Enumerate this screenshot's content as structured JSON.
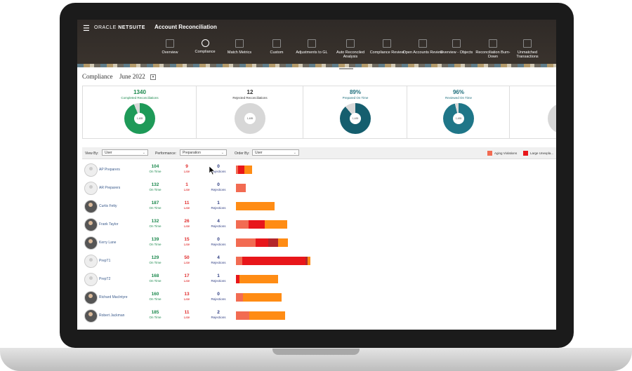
{
  "brand": {
    "name_regular": "ORACLE",
    "name_bold": "NETSUITE"
  },
  "app_title": "Account Reconciliation",
  "nav": [
    {
      "label": "Overview",
      "icon": "dashboard-icon"
    },
    {
      "label": "Compliance",
      "icon": "people-icon"
    },
    {
      "label": "Match Metrics",
      "icon": "chart-icon"
    },
    {
      "label": "Custom",
      "icon": "report-icon"
    },
    {
      "label": "Adjustments to GL",
      "icon": "report-icon"
    },
    {
      "label": "Auto Reconciled Analysis",
      "icon": "report-icon"
    },
    {
      "label": "Compliance Review",
      "icon": "report-icon"
    },
    {
      "label": "Open Accounts Review",
      "icon": "report-icon"
    },
    {
      "label": "Overview - Objects",
      "icon": "report-icon"
    },
    {
      "label": "Reconciliation Burn-Down",
      "icon": "report-icon"
    },
    {
      "label": "Unmatched Transactions",
      "icon": "report-icon"
    }
  ],
  "page": {
    "title": "Compliance",
    "period": "June 2022"
  },
  "cards": [
    {
      "value": "1340",
      "label": "Completed Reconciliations",
      "color": "#1e8a4f",
      "donut_color": "#1e9a58",
      "fraction": 0.94
    },
    {
      "value": "12",
      "label": "Rejected Reconciliations",
      "color": "#333333",
      "donut_color": "#d7d7d7",
      "fraction": 1.0
    },
    {
      "value": "89%",
      "label": "Prepared On Time",
      "color": "#1f6f7d",
      "donut_color": "#155e6e",
      "fraction": 0.89
    },
    {
      "value": "96%",
      "label": "Reviewed On Time",
      "color": "#1f6f7d",
      "donut_color": "#1f7688",
      "fraction": 0.96
    }
  ],
  "donut_center": "1,485",
  "filters": {
    "view_by_label": "View By:",
    "view_by_value": "User",
    "performance_label": "Performance:",
    "performance_value": "Preparation",
    "order_by_label": "Order By:",
    "order_by_value": "User"
  },
  "legend": [
    {
      "label": "Aging Violations",
      "color": "#f26b52"
    },
    {
      "label": "Large Unexpla...",
      "color": "#e8161a"
    }
  ],
  "colors": {
    "ontime": "#1e8a4f",
    "late": "#e02b2b",
    "rejections": "#2b3a80",
    "orange": "#ff8c14"
  },
  "metric_labels": {
    "ontime": "On Time",
    "late": "Late",
    "rejections": "Rejections"
  },
  "rows": [
    {
      "name": "AP Preparers",
      "avatar": "generic",
      "ontime": "104",
      "late": "9",
      "rejections": "0",
      "segments": [
        {
          "w": 3,
          "c": "#f26b52"
        },
        {
          "w": 9,
          "c": "#e8161a"
        },
        {
          "w": 11,
          "c": "#ff8c14"
        }
      ]
    },
    {
      "name": "AR Preparers",
      "avatar": "generic",
      "ontime": "132",
      "late": "1",
      "rejections": "0",
      "segments": [
        {
          "w": 14,
          "c": "#f26b52"
        }
      ]
    },
    {
      "name": "Curtis Fetty",
      "avatar": "photo",
      "ontime": "187",
      "late": "11",
      "rejections": "1",
      "segments": [
        {
          "w": 55,
          "c": "#ff8c14"
        }
      ]
    },
    {
      "name": "Frank Taylor",
      "avatar": "photo",
      "ontime": "132",
      "late": "26",
      "rejections": "4",
      "segments": [
        {
          "w": 18,
          "c": "#f26b52"
        },
        {
          "w": 23,
          "c": "#e8161a"
        },
        {
          "w": 32,
          "c": "#ff8c14"
        }
      ]
    },
    {
      "name": "Kerry Lane",
      "avatar": "photo",
      "ontime": "139",
      "late": "15",
      "rejections": "0",
      "segments": [
        {
          "w": 28,
          "c": "#f26b52"
        },
        {
          "w": 18,
          "c": "#e8161a"
        },
        {
          "w": 14,
          "c": "#b3262a"
        },
        {
          "w": 14,
          "c": "#ff8c14"
        }
      ]
    },
    {
      "name": "PrepT1",
      "avatar": "generic",
      "ontime": "129",
      "late": "50",
      "rejections": "4",
      "segments": [
        {
          "w": 9,
          "c": "#f26b52"
        },
        {
          "w": 90,
          "c": "#e8161a"
        },
        {
          "w": 3,
          "c": "#b3262a"
        },
        {
          "w": 4,
          "c": "#ff8c14"
        }
      ]
    },
    {
      "name": "PrepT2",
      "avatar": "generic",
      "ontime": "168",
      "late": "17",
      "rejections": "1",
      "segments": [
        {
          "w": 5,
          "c": "#e8161a"
        },
        {
          "w": 55,
          "c": "#ff8c14"
        }
      ]
    },
    {
      "name": "Richard MacIntyre",
      "avatar": "photo",
      "ontime": "160",
      "late": "13",
      "rejections": "0",
      "segments": [
        {
          "w": 10,
          "c": "#f26b52"
        },
        {
          "w": 55,
          "c": "#ff8c14"
        }
      ]
    },
    {
      "name": "Robert Jackman",
      "avatar": "photo",
      "ontime": "185",
      "late": "11",
      "rejections": "2",
      "segments": [
        {
          "w": 19,
          "c": "#f26b52"
        },
        {
          "w": 51,
          "c": "#ff8c14"
        }
      ]
    }
  ]
}
